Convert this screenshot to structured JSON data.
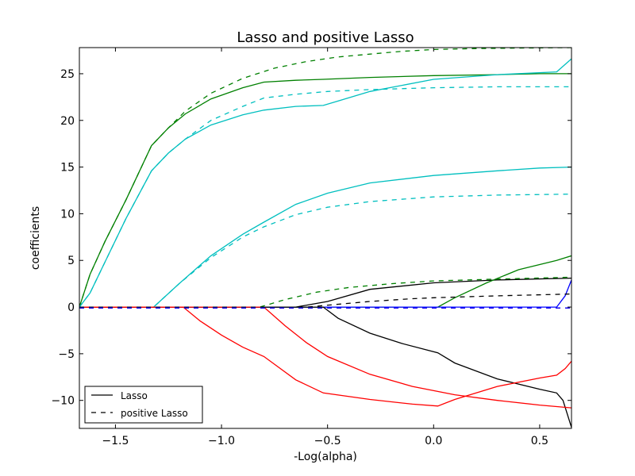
{
  "chart_data": {
    "type": "line",
    "title": "Lasso and positive Lasso",
    "xlabel": "-Log(alpha)",
    "ylabel": "coefficients",
    "xlim": [
      -1.67,
      0.65
    ],
    "ylim": [
      -13,
      27.8
    ],
    "xticks": [
      -1.5,
      -1.0,
      -0.5,
      0.0,
      0.5
    ],
    "xtick_labels": [
      "−1.5",
      "−1.0",
      "−0.5",
      "0.0",
      "0.5"
    ],
    "yticks": [
      -10,
      -5,
      0,
      5,
      10,
      15,
      20,
      25
    ],
    "ytick_labels": [
      "−10",
      "−5",
      "0",
      "5",
      "10",
      "15",
      "20",
      "25"
    ],
    "grid": false,
    "legend": {
      "position": "lower-left",
      "entries": [
        {
          "label": "Lasso",
          "style": "solid"
        },
        {
          "label": "positive Lasso",
          "style": "dashed"
        }
      ]
    },
    "series": [
      {
        "name": "Lasso green 1",
        "group": "Lasso",
        "color": "#008000",
        "dash": "solid",
        "x": [
          -1.67,
          -1.62,
          -1.55,
          -1.45,
          -1.33,
          -1.25,
          -1.17,
          -1.05,
          -0.9,
          -0.8,
          -0.65,
          -0.52,
          -0.3,
          0.0,
          0.3,
          0.5,
          0.65
        ],
        "y": [
          0,
          3.5,
          7.0,
          11.5,
          17.3,
          19.2,
          20.7,
          22.3,
          23.5,
          24.1,
          24.3,
          24.4,
          24.6,
          24.8,
          24.9,
          25.0,
          25.0
        ]
      },
      {
        "name": "Lasso cyan 1",
        "group": "Lasso",
        "color": "#00bfbf",
        "dash": "solid",
        "x": [
          -1.67,
          -1.62,
          -1.55,
          -1.45,
          -1.33,
          -1.25,
          -1.17,
          -1.05,
          -0.9,
          -0.8,
          -0.65,
          -0.52,
          -0.3,
          0.0,
          0.3,
          0.58,
          0.65
        ],
        "y": [
          0,
          1.5,
          4.8,
          9.5,
          14.6,
          16.5,
          18.0,
          19.5,
          20.6,
          21.1,
          21.5,
          21.6,
          23.1,
          24.4,
          24.9,
          25.2,
          26.6
        ]
      },
      {
        "name": "Lasso cyan 2",
        "group": "Lasso",
        "color": "#00bfbf",
        "dash": "solid",
        "x": [
          -1.67,
          -1.32,
          -1.2,
          -1.05,
          -0.9,
          -0.8,
          -0.65,
          -0.5,
          -0.3,
          0.0,
          0.3,
          0.5,
          0.65
        ],
        "y": [
          0,
          0,
          2.5,
          5.5,
          7.8,
          9.1,
          11.0,
          12.2,
          13.3,
          14.1,
          14.6,
          14.9,
          15.0
        ]
      },
      {
        "name": "Lasso black 1",
        "group": "Lasso",
        "color": "#000000",
        "dash": "solid",
        "x": [
          -1.67,
          -0.65,
          -0.5,
          -0.3,
          0.0,
          0.3,
          0.65
        ],
        "y": [
          0,
          0,
          0.6,
          1.9,
          2.6,
          2.9,
          3.1
        ]
      },
      {
        "name": "Lasso green 2",
        "group": "Lasso",
        "color": "#008000",
        "dash": "solid",
        "x": [
          -1.67,
          0.02,
          0.1,
          0.25,
          0.4,
          0.58,
          0.65
        ],
        "y": [
          0,
          0,
          1.0,
          2.6,
          4.0,
          5.0,
          5.5
        ]
      },
      {
        "name": "Lasso blue",
        "group": "Lasso",
        "color": "#0000ff",
        "dash": "solid",
        "x": [
          -1.67,
          0.58,
          0.62,
          0.65
        ],
        "y": [
          0,
          0,
          1.2,
          2.9
        ]
      },
      {
        "name": "Lasso black 2",
        "group": "Lasso",
        "color": "#000000",
        "dash": "solid",
        "x": [
          -1.67,
          -0.52,
          -0.45,
          -0.3,
          -0.15,
          0.02,
          0.1,
          0.3,
          0.5,
          0.58,
          0.61,
          0.65
        ],
        "y": [
          0,
          0,
          -1.2,
          -2.8,
          -3.9,
          -4.9,
          -6.0,
          -7.7,
          -8.8,
          -9.2,
          -10.0,
          -12.9
        ]
      },
      {
        "name": "Lasso red 1",
        "group": "Lasso",
        "color": "#ff0000",
        "dash": "solid",
        "x": [
          -1.67,
          -1.18,
          -1.1,
          -1.0,
          -0.9,
          -0.8,
          -0.65,
          -0.52,
          -0.3,
          -0.1,
          0.02,
          0.1,
          0.3,
          0.5,
          0.58,
          0.62,
          0.65
        ],
        "y": [
          0,
          0,
          -1.5,
          -3.0,
          -4.3,
          -5.3,
          -7.8,
          -9.2,
          -9.9,
          -10.4,
          -10.6,
          -9.9,
          -8.5,
          -7.6,
          -7.3,
          -6.6,
          -5.8
        ]
      },
      {
        "name": "Lasso red 2",
        "group": "Lasso",
        "color": "#ff0000",
        "dash": "solid",
        "x": [
          -1.67,
          -0.8,
          -0.7,
          -0.6,
          -0.5,
          -0.3,
          -0.1,
          0.1,
          0.3,
          0.5,
          0.65
        ],
        "y": [
          0,
          0,
          -2.0,
          -3.8,
          -5.3,
          -7.2,
          -8.5,
          -9.4,
          -10.0,
          -10.5,
          -10.8
        ]
      },
      {
        "name": "positive Lasso green 1",
        "group": "positive Lasso",
        "color": "#008000",
        "dash": "dashed",
        "x": [
          -1.67,
          -1.62,
          -1.55,
          -1.45,
          -1.33,
          -1.25,
          -1.17,
          -1.05,
          -0.9,
          -0.75,
          -0.6,
          -0.45,
          -0.3,
          -0.15,
          0.0,
          0.2,
          0.4,
          0.65
        ],
        "y": [
          0,
          3.5,
          7.0,
          11.5,
          17.3,
          19.2,
          21.0,
          22.9,
          24.5,
          25.6,
          26.3,
          26.8,
          27.1,
          27.4,
          27.6,
          27.7,
          27.75,
          27.8
        ]
      },
      {
        "name": "positive Lasso cyan 1",
        "group": "positive Lasso",
        "color": "#00bfbf",
        "dash": "dashed",
        "x": [
          -1.67,
          -1.62,
          -1.55,
          -1.45,
          -1.33,
          -1.25,
          -1.17,
          -1.05,
          -0.9,
          -0.8,
          -0.65,
          -0.5,
          -0.3,
          0.0,
          0.3,
          0.65
        ],
        "y": [
          0,
          1.5,
          4.8,
          9.5,
          14.6,
          16.5,
          18.0,
          20.0,
          21.5,
          22.4,
          22.8,
          23.1,
          23.3,
          23.5,
          23.6,
          23.6
        ]
      },
      {
        "name": "positive Lasso cyan 2",
        "group": "positive Lasso",
        "color": "#00bfbf",
        "dash": "dashed",
        "x": [
          -1.67,
          -1.32,
          -1.2,
          -1.05,
          -0.9,
          -0.8,
          -0.65,
          -0.5,
          -0.3,
          0.0,
          0.3,
          0.65
        ],
        "y": [
          0,
          0,
          2.5,
          5.3,
          7.5,
          8.6,
          9.9,
          10.7,
          11.3,
          11.8,
          12.0,
          12.1
        ]
      },
      {
        "name": "positive Lasso green 2",
        "group": "positive Lasso",
        "color": "#008000",
        "dash": "dashed",
        "x": [
          -1.67,
          -0.82,
          -0.7,
          -0.55,
          -0.4,
          -0.2,
          0.0,
          0.3,
          0.65
        ],
        "y": [
          0,
          0,
          0.8,
          1.6,
          2.1,
          2.5,
          2.8,
          3.0,
          3.2
        ]
      },
      {
        "name": "positive Lasso black",
        "group": "positive Lasso",
        "color": "#000000",
        "dash": "dashed",
        "x": [
          -1.67,
          -0.6,
          -0.45,
          -0.3,
          -0.1,
          0.0,
          0.3,
          0.65
        ],
        "y": [
          0,
          0,
          0.3,
          0.6,
          0.9,
          1.0,
          1.2,
          1.4
        ]
      },
      {
        "name": "positive Lasso red",
        "group": "positive Lasso",
        "color": "#ff0000",
        "dash": "dashed",
        "x": [
          -1.67,
          0.65
        ],
        "y": [
          -0.1,
          -0.1
        ]
      },
      {
        "name": "positive Lasso blue",
        "group": "positive Lasso",
        "color": "#0000ff",
        "dash": "dashed",
        "x": [
          -1.67,
          0.65
        ],
        "y": [
          -0.1,
          -0.1
        ]
      }
    ]
  }
}
